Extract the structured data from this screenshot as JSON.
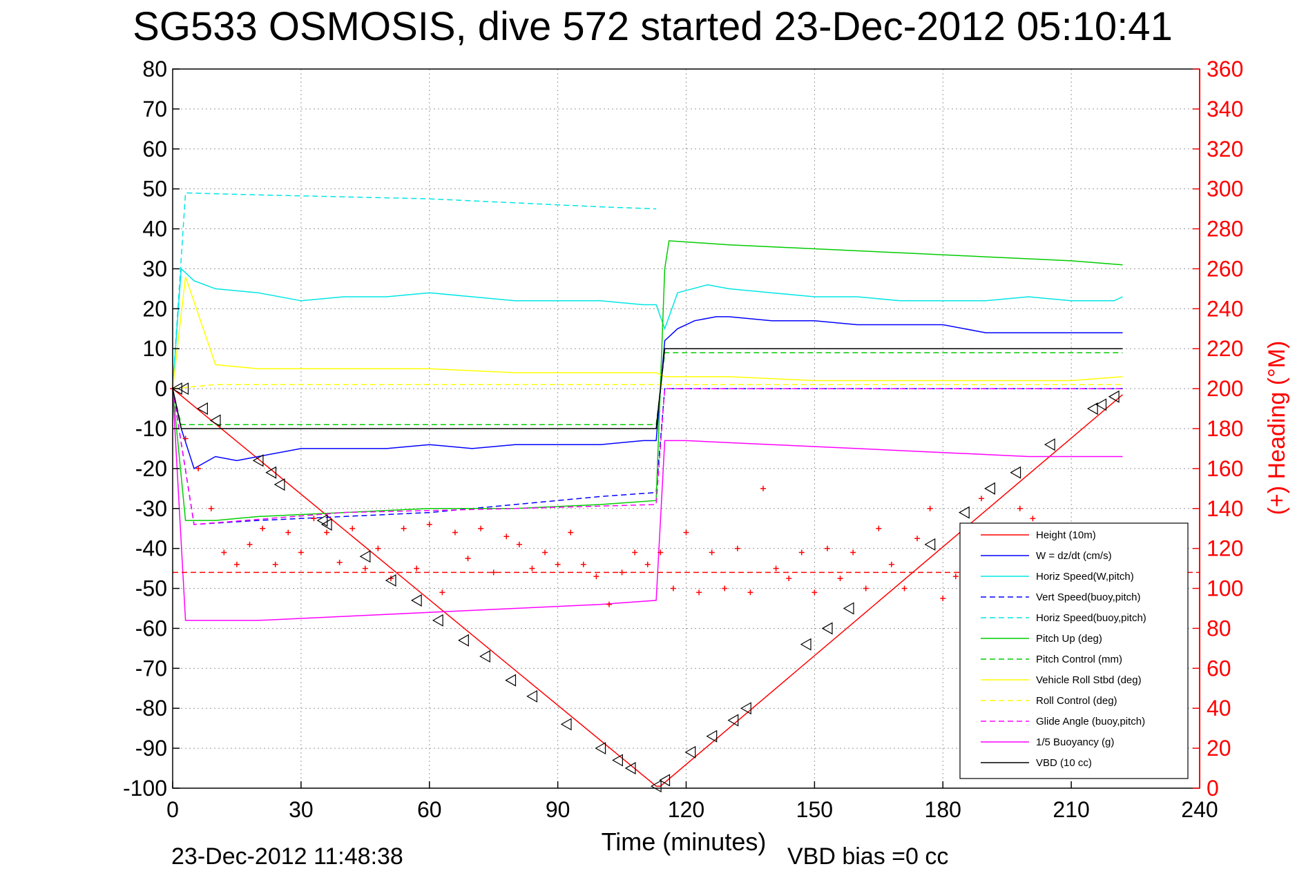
{
  "chart_data": {
    "type": "line",
    "title": "SG533 OSMOSIS, dive 572 started 23-Dec-2012 05:10:41",
    "xlabel": "Time (minutes)",
    "ylabel_left": "",
    "ylabel_right": "(+) Heading (°M)",
    "xlim": [
      0,
      240
    ],
    "ylim_left": [
      -100,
      80
    ],
    "ylim_right": [
      0,
      360
    ],
    "x_ticks": [
      "0",
      "30",
      "60",
      "90",
      "120",
      "150",
      "180",
      "210",
      "240"
    ],
    "y_ticks_left": [
      "80",
      "70",
      "60",
      "50",
      "40",
      "30",
      "20",
      "10",
      "0",
      "-10",
      "-20",
      "-30",
      "-40",
      "-50",
      "-60",
      "-70",
      "-80",
      "-90",
      "-100"
    ],
    "y_ticks_right": [
      "360",
      "340",
      "320",
      "300",
      "280",
      "260",
      "240",
      "220",
      "200",
      "180",
      "160",
      "140",
      "120",
      "100",
      "80",
      "60",
      "40",
      "20",
      "0"
    ],
    "grid": true,
    "legend_position": "lower-right",
    "footer_left": "23-Dec-2012 11:48:38",
    "footer_right": "VBD bias =0 cc",
    "series": [
      {
        "name": "Height (10m)",
        "color": "#ff0000",
        "style": "solid",
        "x": [
          0,
          113,
          114,
          222
        ],
        "y": [
          0,
          -99.5,
          -99.5,
          -1.5
        ]
      },
      {
        "name": "W = dz/dt (cm/s)",
        "color": "#0000ff",
        "style": "solid",
        "x": [
          0,
          2,
          5,
          10,
          15,
          20,
          30,
          40,
          50,
          60,
          70,
          80,
          90,
          100,
          110,
          113,
          115,
          118,
          122,
          127,
          130,
          140,
          150,
          160,
          170,
          180,
          190,
          200,
          210,
          220,
          222
        ],
        "y": [
          0,
          -10,
          -20,
          -17,
          -18,
          -17,
          -15,
          -15,
          -15,
          -14,
          -15,
          -14,
          -14,
          -14,
          -13,
          -13,
          12,
          15,
          17,
          18,
          18,
          17,
          17,
          16,
          16,
          16,
          14,
          14,
          14,
          14,
          14
        ]
      },
      {
        "name": "Horiz Speed(W,pitch)",
        "color": "#00e5e5",
        "style": "solid",
        "x": [
          0,
          2,
          5,
          10,
          20,
          30,
          40,
          50,
          60,
          70,
          80,
          90,
          100,
          110,
          113,
          115,
          118,
          125,
          130,
          140,
          150,
          160,
          170,
          180,
          190,
          200,
          210,
          220,
          222
        ],
        "y": [
          0,
          30,
          27,
          25,
          24,
          22,
          23,
          23,
          24,
          23,
          22,
          22,
          22,
          21,
          21,
          15,
          24,
          26,
          25,
          24,
          23,
          23,
          22,
          22,
          22,
          23,
          22,
          22,
          23
        ]
      },
      {
        "name": "Vert Speed(buoy,pitch)",
        "color": "#0000ff",
        "style": "dashed",
        "x": [
          0,
          5,
          20,
          40,
          60,
          80,
          100,
          113,
          115,
          222
        ],
        "y": [
          0,
          -34,
          -33,
          -32,
          -31,
          -29,
          -27,
          -26,
          0,
          0
        ]
      },
      {
        "name": "Horiz Speed(buoy,pitch)",
        "color": "#00e5e5",
        "style": "dashed",
        "x": [
          0,
          3,
          20,
          40,
          60,
          80,
          100,
          113
        ],
        "y": [
          0,
          49,
          48.5,
          48,
          47.5,
          46.5,
          45.5,
          45
        ]
      },
      {
        "name": "Pitch Up (deg)",
        "color": "#00cc00",
        "style": "solid",
        "x": [
          0,
          3,
          10,
          20,
          40,
          60,
          80,
          100,
          113,
          115,
          116,
          130,
          150,
          170,
          190,
          210,
          222
        ],
        "y": [
          0,
          -33,
          -33,
          -32,
          -31,
          -30,
          -30,
          -29,
          -28,
          30,
          37,
          36,
          35,
          34,
          33,
          32,
          31
        ]
      },
      {
        "name": "Pitch Control (mm)",
        "color": "#00cc00",
        "style": "dashed",
        "x": [
          0,
          2,
          113,
          115,
          222
        ],
        "y": [
          0,
          -9,
          -9,
          9,
          9
        ]
      },
      {
        "name": "Vehicle Roll Stbd (deg)",
        "color": "#ffff00",
        "style": "solid",
        "x": [
          0,
          3,
          10,
          20,
          40,
          60,
          80,
          100,
          113,
          115,
          130,
          150,
          170,
          190,
          210,
          222
        ],
        "y": [
          0,
          28,
          6,
          5,
          5,
          5,
          4,
          4,
          4,
          3,
          3,
          2,
          2,
          2,
          2,
          3
        ]
      },
      {
        "name": "Roll Control (deg)",
        "color": "#ffff00",
        "style": "dashed",
        "x": [
          0,
          10,
          113,
          115,
          222
        ],
        "y": [
          0,
          1,
          1,
          1,
          1
        ]
      },
      {
        "name": "Glide Angle (buoy,pitch)",
        "color": "#ff00ff",
        "style": "dashed",
        "x": [
          0,
          5,
          40,
          80,
          113,
          115,
          222
        ],
        "y": [
          0,
          -34,
          -31,
          -30,
          -29,
          0,
          0
        ]
      },
      {
        "name": "1/5 Buoyancy (g)",
        "color": "#ff00ff",
        "style": "solid",
        "x": [
          0,
          3,
          20,
          40,
          60,
          80,
          100,
          113,
          115,
          120,
          140,
          160,
          180,
          200,
          222
        ],
        "y": [
          0,
          -58,
          -58,
          -57,
          -56,
          -55,
          -54,
          -53,
          -13,
          -13,
          -14,
          -15,
          -16,
          -17,
          -17
        ]
      },
      {
        "name": "VBD (10 cc)",
        "color": "#000000",
        "style": "solid",
        "x": [
          0,
          2,
          113,
          115,
          222
        ],
        "y": [
          0,
          -10,
          -10,
          10,
          10
        ]
      }
    ],
    "heading_series": {
      "name": "(+) Heading",
      "color": "#ff0000",
      "marker": "+",
      "target_heading": 108,
      "x": [
        0,
        3,
        6,
        9,
        12,
        15,
        18,
        21,
        24,
        27,
        30,
        33,
        36,
        39,
        42,
        45,
        48,
        51,
        54,
        57,
        60,
        63,
        66,
        69,
        72,
        75,
        78,
        81,
        84,
        87,
        90,
        93,
        96,
        99,
        102,
        105,
        108,
        111,
        114,
        117,
        120,
        123,
        126,
        129,
        132,
        135,
        138,
        141,
        144,
        147,
        150,
        153,
        156,
        159,
        162,
        165,
        168,
        171,
        174,
        177,
        180,
        183,
        186,
        189,
        192,
        195,
        198,
        201
      ],
      "y": [
        200,
        175,
        160,
        140,
        118,
        112,
        122,
        130,
        112,
        128,
        118,
        135,
        128,
        113,
        130,
        110,
        120,
        105,
        130,
        110,
        132,
        98,
        128,
        115,
        130,
        108,
        126,
        122,
        110,
        118,
        112,
        128,
        112,
        106,
        92,
        108,
        118,
        112,
        118,
        100,
        128,
        98,
        118,
        100,
        120,
        98,
        150,
        110,
        105,
        118,
        98,
        120,
        105,
        118,
        100,
        130,
        112,
        100,
        125,
        140,
        95,
        106,
        112,
        145,
        130,
        112,
        140,
        135
      ]
    },
    "direction_markers": {
      "marker": "triangle",
      "color": "#000000",
      "x": [
        1,
        2.5,
        7,
        10,
        20,
        23,
        25,
        35,
        36,
        45,
        51,
        57,
        62,
        68,
        73,
        79,
        84,
        92,
        100,
        104,
        107,
        113,
        115,
        121,
        126,
        131,
        134,
        148,
        153,
        158,
        177,
        185,
        191,
        197,
        205,
        215,
        217,
        220
      ],
      "y": [
        0,
        0,
        -5,
        -8,
        -18,
        -21,
        -24,
        -33,
        -34,
        -42,
        -48,
        -53,
        -58,
        -63,
        -67,
        -73,
        -77,
        -84,
        -90,
        -93,
        -95,
        -99.5,
        -98,
        -91,
        -87,
        -83,
        -80,
        -64,
        -60,
        -55,
        -39,
        -31,
        -25,
        -21,
        -14,
        -5,
        -4,
        -2
      ]
    }
  }
}
